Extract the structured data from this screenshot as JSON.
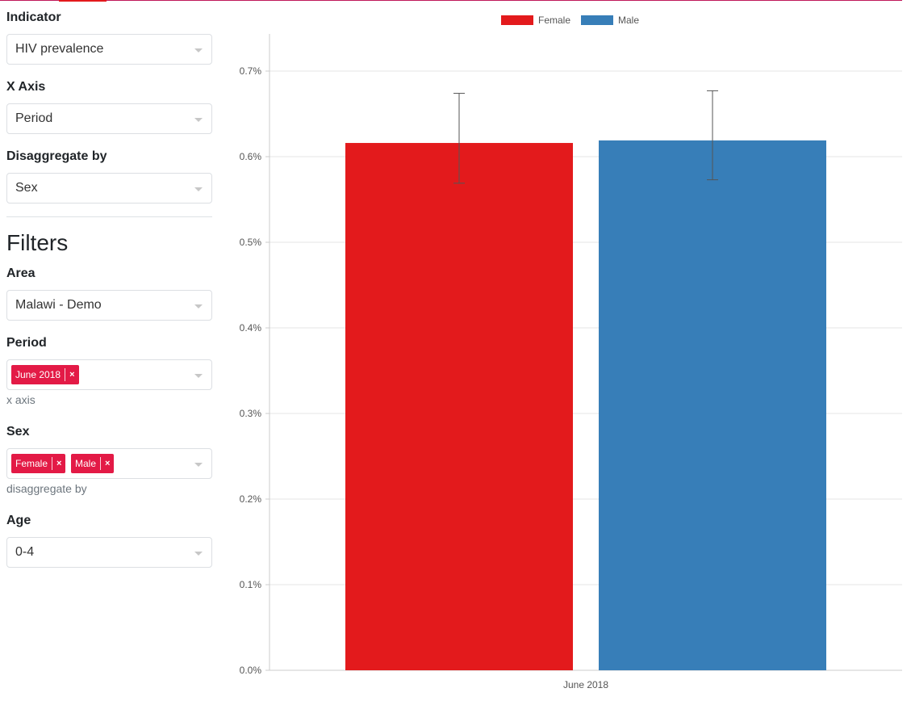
{
  "sidebar": {
    "indicator": {
      "label": "Indicator",
      "value": "HIV prevalence"
    },
    "x_axis": {
      "label": "X Axis",
      "value": "Period"
    },
    "disaggregate": {
      "label": "Disaggregate by",
      "value": "Sex"
    },
    "filters_title": "Filters",
    "area": {
      "label": "Area",
      "value": "Malawi - Demo"
    },
    "period": {
      "label": "Period",
      "tags": [
        "June 2018"
      ],
      "help": "x axis"
    },
    "sex": {
      "label": "Sex",
      "tags": [
        "Female",
        "Male"
      ],
      "help": "disaggregate by"
    },
    "age": {
      "label": "Age",
      "value": "0-4"
    },
    "remove_symbol": "×"
  },
  "colors": {
    "female": "#e31a1c",
    "male": "#377eb8",
    "tag": "#e31a46",
    "accent_line": "#c0185a"
  },
  "chart_data": {
    "type": "bar",
    "categories": [
      "June 2018"
    ],
    "series": [
      {
        "name": "Female",
        "values": [
          0.616
        ],
        "error_low": [
          0.569
        ],
        "error_high": [
          0.674
        ],
        "color": "#e31a1c"
      },
      {
        "name": "Male",
        "values": [
          0.619
        ],
        "error_low": [
          0.573
        ],
        "error_high": [
          0.677
        ],
        "color": "#377eb8"
      }
    ],
    "y_ticks": [
      "0.0%",
      "0.1%",
      "0.2%",
      "0.3%",
      "0.4%",
      "0.5%",
      "0.6%",
      "0.7%"
    ],
    "ylim": [
      0,
      0.7
    ],
    "y_unit": "%",
    "grid": true,
    "legend_position": "top-center"
  }
}
